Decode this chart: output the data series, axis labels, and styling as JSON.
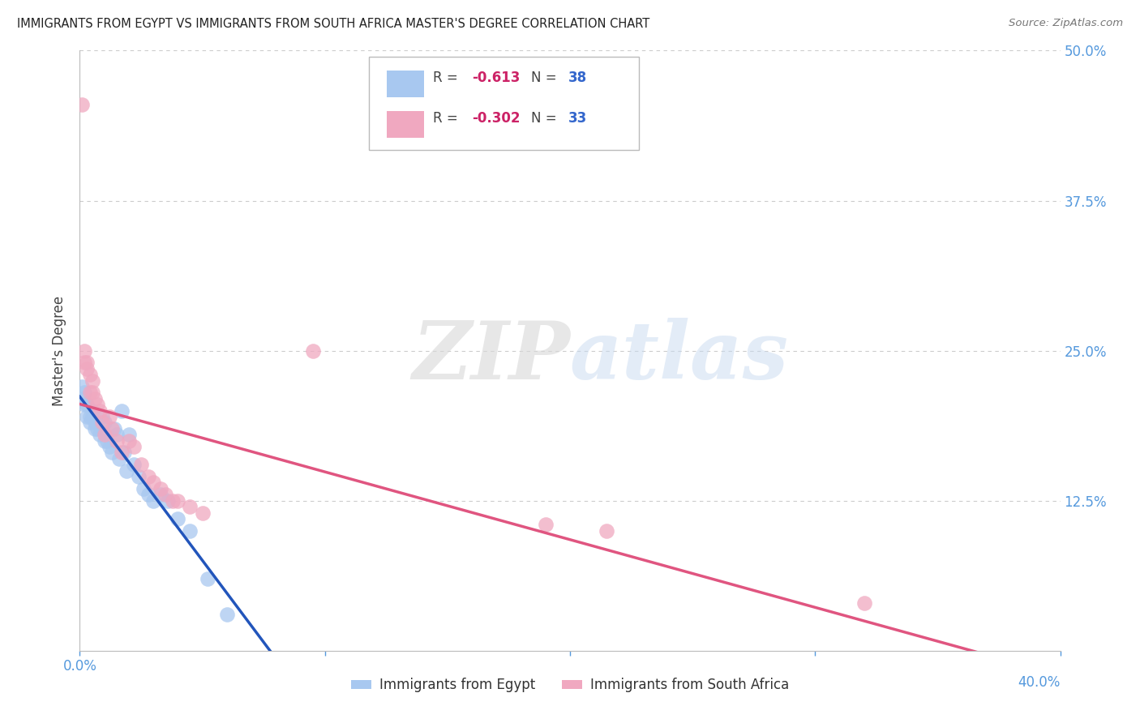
{
  "title": "IMMIGRANTS FROM EGYPT VS IMMIGRANTS FROM SOUTH AFRICA MASTER'S DEGREE CORRELATION CHART",
  "source": "Source: ZipAtlas.com",
  "ylabel": "Master's Degree",
  "legend_egypt": "Immigrants from Egypt",
  "legend_sa": "Immigrants from South Africa",
  "r_egypt": "-0.613",
  "n_egypt": "38",
  "r_sa": "-0.302",
  "n_sa": "33",
  "color_egypt": "#a8c8f0",
  "color_sa": "#f0a8c0",
  "line_color_egypt": "#2255bb",
  "line_color_sa": "#e05580",
  "xlim": [
    0.0,
    0.4
  ],
  "ylim": [
    0.0,
    0.5
  ],
  "xticks": [
    0.0,
    0.1,
    0.2,
    0.3,
    0.4
  ],
  "yticks": [
    0.0,
    0.125,
    0.25,
    0.375,
    0.5
  ],
  "egypt_x": [
    0.001,
    0.001,
    0.002,
    0.002,
    0.003,
    0.003,
    0.004,
    0.004,
    0.005,
    0.005,
    0.006,
    0.006,
    0.007,
    0.008,
    0.009,
    0.01,
    0.01,
    0.011,
    0.012,
    0.013,
    0.014,
    0.015,
    0.016,
    0.017,
    0.018,
    0.019,
    0.02,
    0.022,
    0.024,
    0.026,
    0.028,
    0.03,
    0.033,
    0.036,
    0.04,
    0.045,
    0.052,
    0.06
  ],
  "egypt_y": [
    0.22,
    0.21,
    0.215,
    0.205,
    0.205,
    0.195,
    0.195,
    0.19,
    0.2,
    0.195,
    0.19,
    0.185,
    0.185,
    0.18,
    0.195,
    0.19,
    0.175,
    0.175,
    0.17,
    0.165,
    0.185,
    0.18,
    0.16,
    0.2,
    0.165,
    0.15,
    0.18,
    0.155,
    0.145,
    0.135,
    0.13,
    0.125,
    0.13,
    0.125,
    0.11,
    0.1,
    0.06,
    0.03
  ],
  "sa_x": [
    0.001,
    0.002,
    0.002,
    0.003,
    0.003,
    0.004,
    0.004,
    0.005,
    0.005,
    0.006,
    0.007,
    0.008,
    0.009,
    0.01,
    0.012,
    0.013,
    0.015,
    0.017,
    0.02,
    0.022,
    0.025,
    0.028,
    0.03,
    0.033,
    0.035,
    0.038,
    0.04,
    0.045,
    0.05,
    0.095,
    0.19,
    0.215,
    0.32
  ],
  "sa_y": [
    0.455,
    0.25,
    0.24,
    0.24,
    0.235,
    0.23,
    0.215,
    0.225,
    0.215,
    0.21,
    0.205,
    0.2,
    0.19,
    0.18,
    0.195,
    0.185,
    0.175,
    0.165,
    0.175,
    0.17,
    0.155,
    0.145,
    0.14,
    0.135,
    0.13,
    0.125,
    0.125,
    0.12,
    0.115,
    0.25,
    0.105,
    0.1,
    0.04
  ],
  "watermark_zip": "ZIP",
  "watermark_atlas": "atlas",
  "background_color": "#ffffff",
  "grid_color": "#cccccc"
}
